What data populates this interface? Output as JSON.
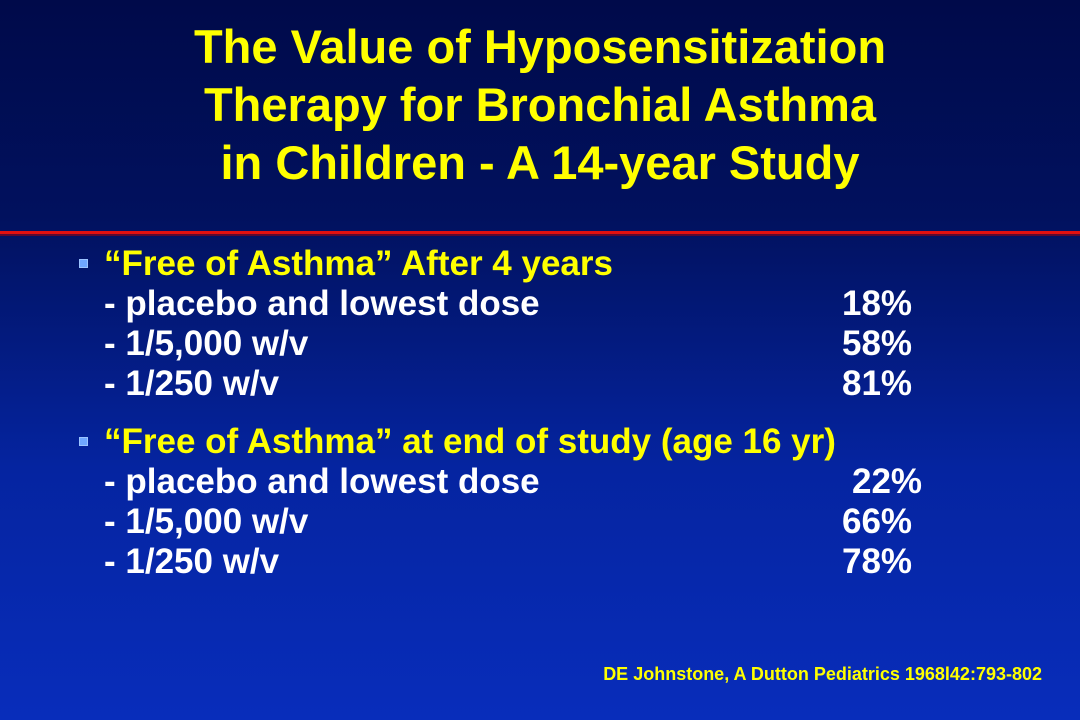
{
  "title": {
    "line1": "The Value of Hyposensitization",
    "line2": "Therapy for Bronchial Asthma",
    "line3": "in Children - A 14-year Study"
  },
  "section1": {
    "heading": "“Free of Asthma” After 4 years",
    "items": [
      {
        "label": "- placebo and lowest dose",
        "value": "18%"
      },
      {
        "label": "- 1/5,000 w/v",
        "value": "58%"
      },
      {
        "label": "- 1/250 w/v",
        "value": "81%"
      }
    ]
  },
  "section2": {
    "heading": "“Free of Asthma” at end of study (age 16 yr)",
    "items": [
      {
        "label": "- placebo and lowest dose",
        "value": "22%"
      },
      {
        "label": "- 1/5,000 w/v",
        "value": "66%"
      },
      {
        "label": "- 1/250 w/v",
        "value": "78%"
      }
    ]
  },
  "citation": "DE Johnstone, A Dutton Pediatrics 1968l42:793-802",
  "colors": {
    "title": "#ffff00",
    "heading": "#ffff00",
    "body_text": "#ffffff",
    "rule": "#e01010",
    "bullet": "#6fa7ff"
  }
}
